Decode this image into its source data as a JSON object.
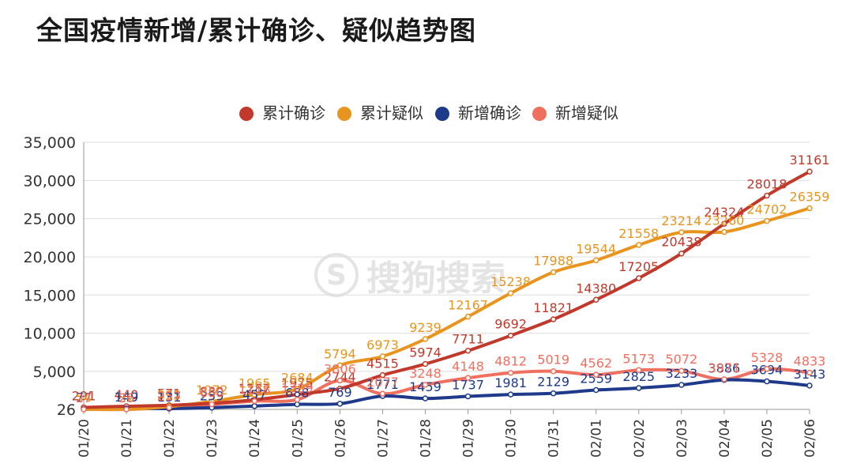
{
  "title": "全国疫情新增/累计确诊、疑似趋势图",
  "watermark": {
    "logo_text": "S",
    "text": "搜狗搜索"
  },
  "chart_data": {
    "type": "line",
    "categories": [
      "01/20",
      "01/21",
      "01/22",
      "01/23",
      "01/24",
      "01/25",
      "01/26",
      "01/27",
      "01/28",
      "01/29",
      "01/30",
      "01/31",
      "02/01",
      "02/02",
      "02/03",
      "02/04",
      "02/05",
      "02/06"
    ],
    "y_tick_labels": [
      "26",
      "5,000",
      "10,000",
      "15,000",
      "20,000",
      "25,000",
      "30,000",
      "35,000"
    ],
    "y_ticks": [
      26,
      5000,
      10000,
      15000,
      20000,
      25000,
      30000,
      35000
    ],
    "ylim": [
      26,
      35000
    ],
    "grid": true,
    "legend_position": "top-center",
    "series": [
      {
        "name": "累计确诊",
        "color": "#c0392b",
        "values": [
          291,
          440,
          571,
          830,
          1287,
          1975,
          2744,
          4515,
          5974,
          7711,
          9692,
          11821,
          14380,
          17205,
          20438,
          24324,
          28018,
          31161
        ],
        "labels": [
          "291",
          "440",
          "571",
          "830",
          "1287",
          "1975",
          "2744",
          "4515",
          "5974",
          "7711",
          "9692",
          "11821",
          "14380",
          "17205",
          "20438",
          "24324",
          "28018",
          "31161"
        ]
      },
      {
        "name": "累计疑似",
        "color": "#e8951f",
        "values": [
          54,
          37,
          393,
          1072,
          1965,
          2684,
          5794,
          6973,
          9239,
          12167,
          15238,
          17988,
          19544,
          21558,
          23214,
          23260,
          24702,
          26359
        ],
        "labels": [
          "54",
          "37",
          "393",
          "1072",
          "1965",
          "2684",
          "5794",
          "6973",
          "9239",
          "12167",
          "15238",
          "17988",
          "19544",
          "21558",
          "23214",
          "23260",
          "24702",
          "26359"
        ]
      },
      {
        "name": "新增确诊",
        "color": "#1f3a8a",
        "values": [
          77,
          149,
          131,
          259,
          457,
          688,
          769,
          1771,
          1459,
          1737,
          1981,
          2129,
          2559,
          2825,
          3233,
          3886,
          3694,
          3143
        ],
        "labels": [
          "77",
          "149",
          "131",
          "259",
          "457",
          "688",
          "769",
          "1771",
          "1459",
          "1737",
          "1981",
          "2129",
          "2559",
          "2825",
          "3233",
          "3886",
          "3694",
          "3143"
        ]
      },
      {
        "name": "新增疑似",
        "color": "#f07060",
        "values": [
          27,
          26,
          257,
          680,
          1118,
          1309,
          3806,
          2077,
          3248,
          4148,
          4812,
          5019,
          4562,
          5173,
          5072,
          3971,
          5328,
          4833
        ],
        "labels": [
          "27",
          "26",
          "257",
          "680",
          "1118",
          "1309",
          "3806",
          "2077",
          "3248",
          "4148",
          "4812",
          "5019",
          "4562",
          "5173",
          "5072",
          "3971",
          "5328",
          "4833"
        ]
      }
    ]
  }
}
